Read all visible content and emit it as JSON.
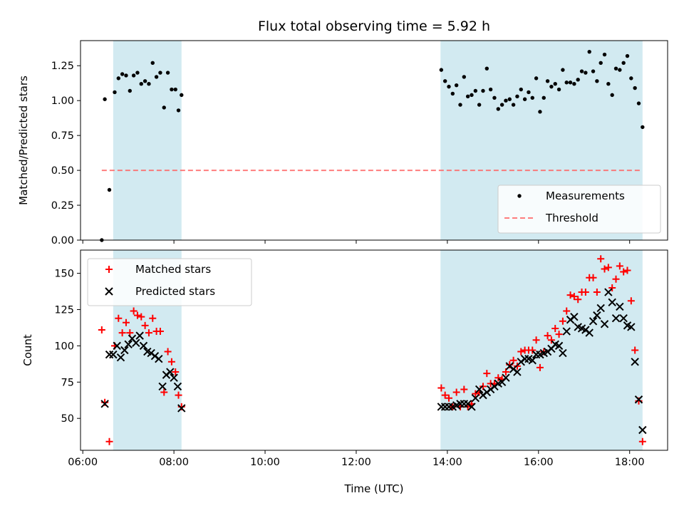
{
  "chart_data": [
    {
      "type": "scatter",
      "title": "Flux total observing time = 5.92 h",
      "ylabel": "Matched/Predicted stars",
      "ylim": [
        0,
        1.43
      ],
      "yticks": [
        0.0,
        0.25,
        0.5,
        0.75,
        1.0,
        1.25
      ],
      "ytick_labels": [
        "0.00",
        "0.25",
        "0.50",
        "0.75",
        "1.00",
        "1.25"
      ],
      "shaded_intervals": [
        [
          "06:40",
          "08:10"
        ],
        [
          "13:51",
          "18:17"
        ]
      ],
      "shade_color": "#add8e6",
      "legend": [
        {
          "label": "Measurements",
          "marker": "dot",
          "color": "#000000"
        },
        {
          "label": "Threshold",
          "marker": "dashed-line",
          "color": "#ff6666"
        }
      ],
      "legend_position": "lower-right",
      "series": [
        {
          "name": "Measurements",
          "color": "#000000",
          "points": [
            [
              "06:25",
              0.0
            ],
            [
              "06:29",
              1.01
            ],
            [
              "06:35",
              0.36
            ],
            [
              "06:42",
              1.06
            ],
            [
              "06:47",
              1.16
            ],
            [
              "06:52",
              1.19
            ],
            [
              "06:57",
              1.18
            ],
            [
              "07:02",
              1.07
            ],
            [
              "07:07",
              1.18
            ],
            [
              "07:12",
              1.2
            ],
            [
              "07:17",
              1.12
            ],
            [
              "07:22",
              1.14
            ],
            [
              "07:27",
              1.12
            ],
            [
              "07:32",
              1.27
            ],
            [
              "07:37",
              1.17
            ],
            [
              "07:42",
              1.2
            ],
            [
              "07:47",
              0.95
            ],
            [
              "07:52",
              1.2
            ],
            [
              "07:57",
              1.08
            ],
            [
              "08:02",
              1.08
            ],
            [
              "08:06",
              0.93
            ],
            [
              "08:10",
              1.04
            ],
            [
              "13:52",
              1.22
            ],
            [
              "13:57",
              1.14
            ],
            [
              "14:02",
              1.1
            ],
            [
              "14:07",
              1.05
            ],
            [
              "14:12",
              1.11
            ],
            [
              "14:17",
              0.97
            ],
            [
              "14:22",
              1.17
            ],
            [
              "14:27",
              1.03
            ],
            [
              "14:32",
              1.04
            ],
            [
              "14:37",
              1.07
            ],
            [
              "14:42",
              0.97
            ],
            [
              "14:47",
              1.07
            ],
            [
              "14:52",
              1.23
            ],
            [
              "14:57",
              1.08
            ],
            [
              "15:02",
              1.02
            ],
            [
              "15:07",
              0.94
            ],
            [
              "15:12",
              0.97
            ],
            [
              "15:17",
              1.0
            ],
            [
              "15:22",
              1.01
            ],
            [
              "15:27",
              0.97
            ],
            [
              "15:32",
              1.03
            ],
            [
              "15:37",
              1.08
            ],
            [
              "15:42",
              1.01
            ],
            [
              "15:47",
              1.06
            ],
            [
              "15:52",
              1.02
            ],
            [
              "15:57",
              1.16
            ],
            [
              "16:02",
              0.92
            ],
            [
              "16:07",
              1.02
            ],
            [
              "16:12",
              1.14
            ],
            [
              "16:17",
              1.1
            ],
            [
              "16:22",
              1.12
            ],
            [
              "16:27",
              1.08
            ],
            [
              "16:32",
              1.22
            ],
            [
              "16:37",
              1.13
            ],
            [
              "16:42",
              1.13
            ],
            [
              "16:47",
              1.12
            ],
            [
              "16:52",
              1.15
            ],
            [
              "16:57",
              1.21
            ],
            [
              "17:02",
              1.2
            ],
            [
              "17:07",
              1.35
            ],
            [
              "17:12",
              1.21
            ],
            [
              "17:17",
              1.14
            ],
            [
              "17:22",
              1.27
            ],
            [
              "17:27",
              1.33
            ],
            [
              "17:32",
              1.12
            ],
            [
              "17:37",
              1.04
            ],
            [
              "17:42",
              1.23
            ],
            [
              "17:47",
              1.22
            ],
            [
              "17:52",
              1.27
            ],
            [
              "17:57",
              1.32
            ],
            [
              "18:02",
              1.16
            ],
            [
              "18:07",
              1.09
            ],
            [
              "18:12",
              0.98
            ],
            [
              "18:17",
              0.81
            ]
          ]
        },
        {
          "name": "Threshold",
          "color": "#ff6666",
          "style": "dashed",
          "points": [
            [
              "06:25",
              0.5
            ],
            [
              "18:17",
              0.5
            ]
          ]
        }
      ]
    },
    {
      "type": "scatter",
      "xlabel": "Time (UTC)",
      "ylabel": "Count",
      "ylim": [
        28,
        166
      ],
      "yticks": [
        50,
        75,
        100,
        125,
        150
      ],
      "ytick_labels": [
        "50",
        "75",
        "100",
        "125",
        "150"
      ],
      "xlim": [
        "05:57",
        "18:50"
      ],
      "xticks": [
        "06:00",
        "08:00",
        "10:00",
        "12:00",
        "14:00",
        "16:00",
        "18:00"
      ],
      "shaded_intervals": [
        [
          "06:40",
          "08:10"
        ],
        [
          "13:51",
          "18:17"
        ]
      ],
      "shade_color": "#add8e6",
      "legend": [
        {
          "label": "Matched stars",
          "marker": "plus",
          "color": "#ff0000"
        },
        {
          "label": "Predicted stars",
          "marker": "x",
          "color": "#000000"
        }
      ],
      "legend_position": "upper-left",
      "series": [
        {
          "name": "Matched stars",
          "marker": "plus",
          "color": "#ff0000",
          "points": [
            [
              "06:25",
              111
            ],
            [
              "06:29",
              61
            ],
            [
              "06:35",
              34
            ],
            [
              "06:42",
              100
            ],
            [
              "06:47",
              119
            ],
            [
              "06:52",
              109
            ],
            [
              "06:57",
              116
            ],
            [
              "07:02",
              109
            ],
            [
              "07:07",
              124
            ],
            [
              "07:12",
              121
            ],
            [
              "07:17",
              120
            ],
            [
              "07:22",
              114
            ],
            [
              "07:27",
              109
            ],
            [
              "07:32",
              119
            ],
            [
              "07:37",
              110
            ],
            [
              "07:42",
              110
            ],
            [
              "07:47",
              68
            ],
            [
              "07:52",
              96
            ],
            [
              "07:57",
              89
            ],
            [
              "08:02",
              82
            ],
            [
              "08:06",
              66
            ],
            [
              "08:10",
              58
            ],
            [
              "13:52",
              71
            ],
            [
              "13:57",
              66
            ],
            [
              "14:02",
              64
            ],
            [
              "14:07",
              58
            ],
            [
              "14:12",
              68
            ],
            [
              "14:17",
              58
            ],
            [
              "14:22",
              70
            ],
            [
              "14:27",
              58
            ],
            [
              "14:32",
              60
            ],
            [
              "14:37",
              67
            ],
            [
              "14:42",
              68
            ],
            [
              "14:47",
              72
            ],
            [
              "14:52",
              81
            ],
            [
              "14:57",
              74
            ],
            [
              "15:02",
              74
            ],
            [
              "15:07",
              78
            ],
            [
              "15:12",
              77
            ],
            [
              "15:17",
              82
            ],
            [
              "15:22",
              87
            ],
            [
              "15:27",
              90
            ],
            [
              "15:32",
              86
            ],
            [
              "15:37",
              96
            ],
            [
              "15:42",
              97
            ],
            [
              "15:47",
              97
            ],
            [
              "15:52",
              97
            ],
            [
              "15:57",
              104
            ],
            [
              "16:02",
              85
            ],
            [
              "16:07",
              96
            ],
            [
              "16:12",
              107
            ],
            [
              "16:17",
              104
            ],
            [
              "16:22",
              112
            ],
            [
              "16:27",
              108
            ],
            [
              "16:32",
              117
            ],
            [
              "16:37",
              124
            ],
            [
              "16:42",
              135
            ],
            [
              "16:47",
              134
            ],
            [
              "16:52",
              132
            ],
            [
              "16:57",
              137
            ],
            [
              "17:02",
              137
            ],
            [
              "17:07",
              147
            ],
            [
              "17:12",
              147
            ],
            [
              "17:17",
              137
            ],
            [
              "17:22",
              160
            ],
            [
              "17:27",
              153
            ],
            [
              "17:32",
              154
            ],
            [
              "17:37",
              140
            ],
            [
              "17:42",
              146
            ],
            [
              "17:47",
              155
            ],
            [
              "17:52",
              151
            ],
            [
              "17:57",
              152
            ],
            [
              "18:02",
              131
            ],
            [
              "18:07",
              97
            ],
            [
              "18:12",
              62
            ],
            [
              "18:17",
              34
            ]
          ]
        },
        {
          "name": "Predicted stars",
          "marker": "x",
          "color": "#000000",
          "points": [
            [
              "06:29",
              60
            ],
            [
              "06:35",
              94
            ],
            [
              "06:40",
              94
            ],
            [
              "06:45",
              100
            ],
            [
              "06:50",
              92
            ],
            [
              "06:55",
              97
            ],
            [
              "07:00",
              101
            ],
            [
              "07:05",
              105
            ],
            [
              "07:10",
              102
            ],
            [
              "07:15",
              107
            ],
            [
              "07:20",
              100
            ],
            [
              "07:25",
              96
            ],
            [
              "07:30",
              95
            ],
            [
              "07:35",
              93
            ],
            [
              "07:40",
              91
            ],
            [
              "07:45",
              72
            ],
            [
              "07:50",
              80
            ],
            [
              "07:55",
              82
            ],
            [
              "08:00",
              78
            ],
            [
              "08:05",
              72
            ],
            [
              "08:10",
              57
            ],
            [
              "13:52",
              58
            ],
            [
              "13:57",
              58
            ],
            [
              "14:02",
              58
            ],
            [
              "14:07",
              58
            ],
            [
              "14:12",
              59
            ],
            [
              "14:17",
              60
            ],
            [
              "14:22",
              60
            ],
            [
              "14:27",
              60
            ],
            [
              "14:32",
              58
            ],
            [
              "14:37",
              64
            ],
            [
              "14:42",
              70
            ],
            [
              "14:47",
              66
            ],
            [
              "14:52",
              68
            ],
            [
              "14:57",
              70
            ],
            [
              "15:02",
              72
            ],
            [
              "15:07",
              74
            ],
            [
              "15:12",
              75
            ],
            [
              "15:17",
              78
            ],
            [
              "15:22",
              86
            ],
            [
              "15:27",
              84
            ],
            [
              "15:32",
              82
            ],
            [
              "15:37",
              89
            ],
            [
              "15:42",
              91
            ],
            [
              "15:47",
              91
            ],
            [
              "15:52",
              90
            ],
            [
              "15:57",
              94
            ],
            [
              "16:02",
              94
            ],
            [
              "16:07",
              95
            ],
            [
              "16:12",
              96
            ],
            [
              "16:17",
              98
            ],
            [
              "16:22",
              101
            ],
            [
              "16:27",
              100
            ],
            [
              "16:32",
              95
            ],
            [
              "16:37",
              110
            ],
            [
              "16:42",
              118
            ],
            [
              "16:47",
              120
            ],
            [
              "16:52",
              113
            ],
            [
              "16:57",
              112
            ],
            [
              "17:02",
              111
            ],
            [
              "17:07",
              109
            ],
            [
              "17:12",
              117
            ],
            [
              "17:17",
              121
            ],
            [
              "17:22",
              126
            ],
            [
              "17:27",
              115
            ],
            [
              "17:32",
              137
            ],
            [
              "17:37",
              130
            ],
            [
              "17:42",
              119
            ],
            [
              "17:47",
              127
            ],
            [
              "17:52",
              119
            ],
            [
              "17:57",
              114
            ],
            [
              "18:02",
              113
            ],
            [
              "18:07",
              89
            ],
            [
              "18:12",
              63
            ],
            [
              "18:17",
              42
            ]
          ]
        }
      ]
    }
  ]
}
